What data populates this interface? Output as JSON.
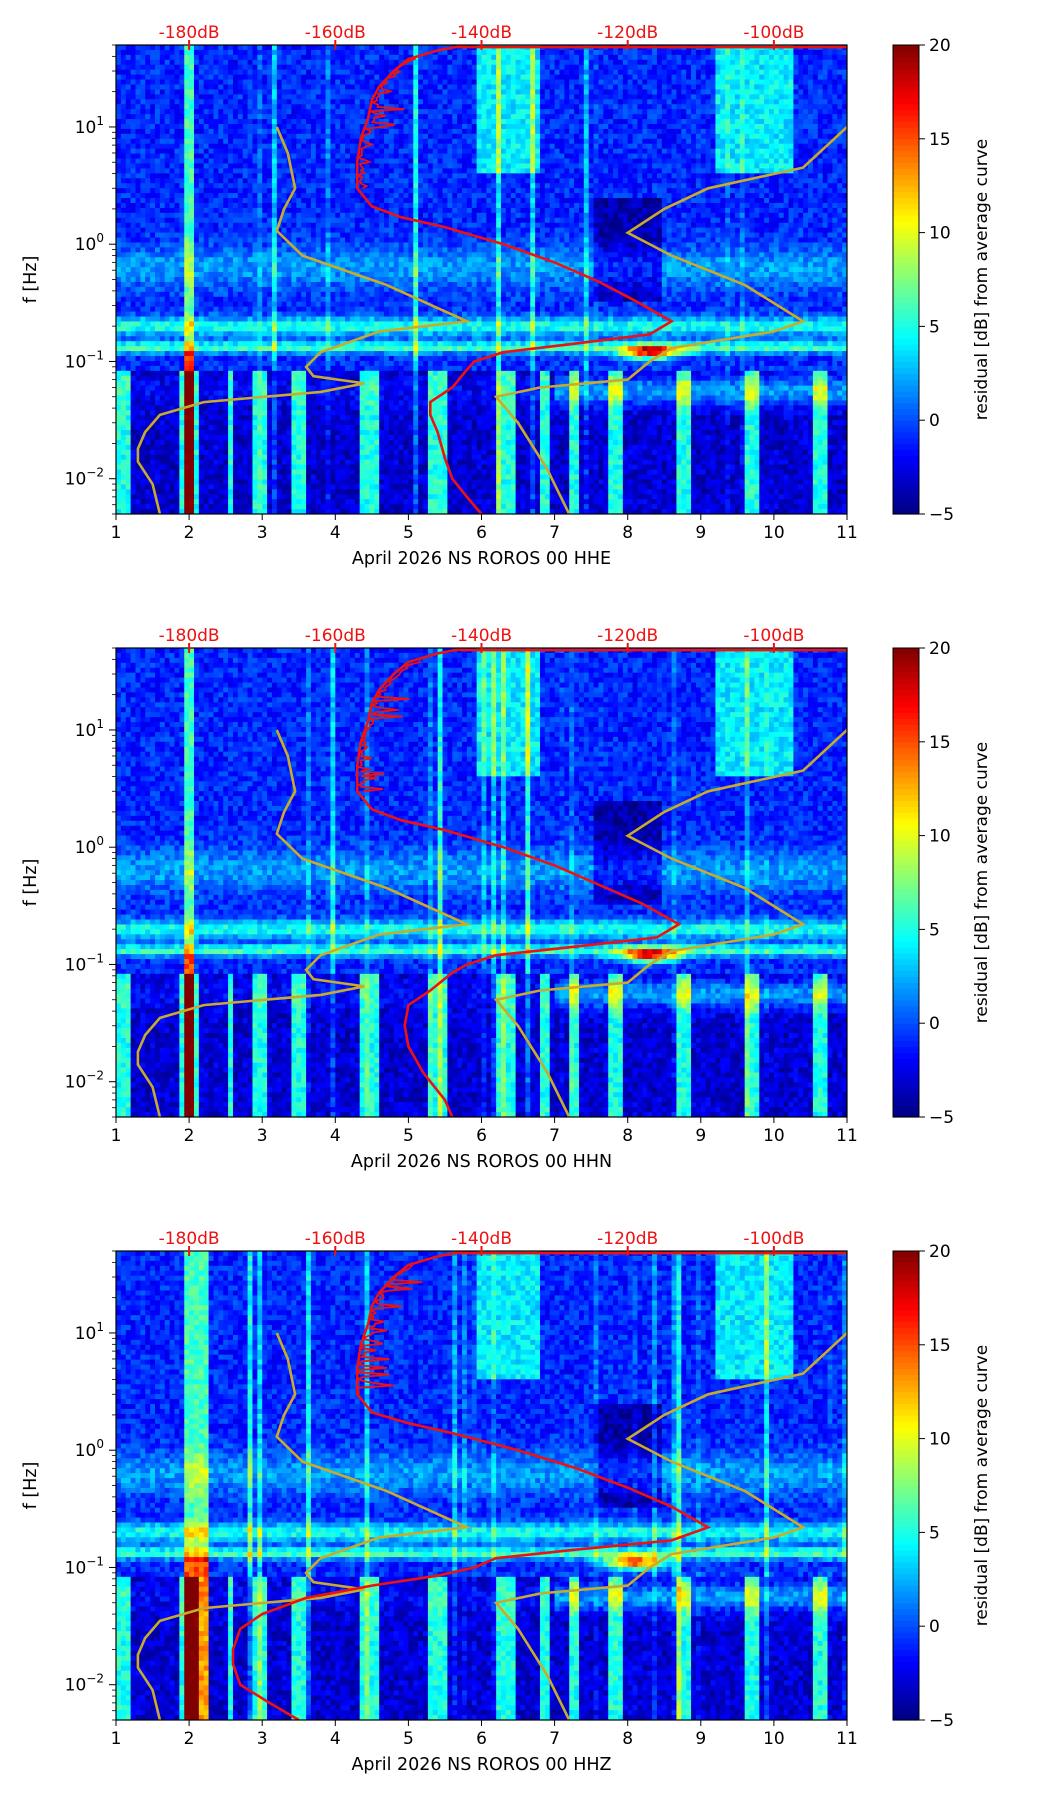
{
  "chart_data": {
    "type": "heatmap",
    "x_ticks": [
      1,
      2,
      3,
      4,
      5,
      6,
      7,
      8,
      9,
      10,
      11
    ],
    "xlim": [
      1,
      11
    ],
    "ylim": [
      0.005,
      50
    ],
    "yscale": "log",
    "ylabel": "f [Hz]",
    "y_ticks": [
      {
        "value": 10,
        "base": "10",
        "exp": "1"
      },
      {
        "value": 1,
        "base": "10",
        "exp": "0"
      },
      {
        "value": 0.1,
        "base": "10",
        "exp": "−1"
      },
      {
        "value": 0.01,
        "base": "10",
        "exp": "−2"
      }
    ],
    "db_ticks": [
      {
        "label": "-180dB",
        "x": 2.0
      },
      {
        "label": "-160dB",
        "x": 4.0
      },
      {
        "label": "-140dB",
        "x": 6.0
      },
      {
        "label": "-120dB",
        "x": 8.0
      },
      {
        "label": "-100dB",
        "x": 10.0
      }
    ],
    "colorbar": {
      "label": "residual [dB] from average curve",
      "range": [
        -5,
        20
      ],
      "ticks": [
        -5,
        0,
        5,
        10,
        15,
        20
      ],
      "tick_labels": [
        "−5",
        "0",
        "5",
        "10",
        "15",
        "20"
      ],
      "colormap": "jet"
    },
    "noise_model": [
      [
        3.2,
        10
      ],
      [
        3.35,
        6
      ],
      [
        3.45,
        3
      ],
      [
        3.3,
        2
      ],
      [
        3.2,
        1.3
      ],
      [
        3.55,
        0.8
      ],
      [
        4.7,
        0.45
      ],
      [
        5.8,
        0.22
      ],
      [
        4.6,
        0.18
      ],
      [
        3.8,
        0.12
      ],
      [
        3.6,
        0.09
      ],
      [
        3.7,
        0.075
      ],
      [
        4.4,
        0.065
      ],
      [
        3.8,
        0.055
      ],
      [
        2.2,
        0.045
      ],
      [
        1.6,
        0.035
      ],
      [
        1.4,
        0.025
      ],
      [
        1.3,
        0.018
      ],
      [
        1.3,
        0.014
      ],
      [
        1.5,
        0.009
      ],
      [
        1.6,
        0.005
      ],
      null,
      [
        11,
        10
      ],
      [
        10.4,
        4.5
      ],
      [
        9.1,
        3
      ],
      [
        8.5,
        2
      ],
      [
        8.0,
        1.25
      ],
      [
        8.6,
        0.8
      ],
      [
        9.6,
        0.45
      ],
      [
        10.4,
        0.22
      ],
      [
        10.0,
        0.18
      ],
      [
        8.6,
        0.13
      ],
      [
        8.3,
        0.1
      ],
      [
        8.0,
        0.07
      ],
      [
        6.8,
        0.06
      ],
      [
        6.2,
        0.05
      ],
      [
        6.5,
        0.03
      ],
      [
        6.9,
        0.012
      ],
      [
        7.2,
        0.005
      ]
    ],
    "panels": [
      {
        "xlabel": "April 2026 NS ROROS 00 HHE",
        "avg_curve": [
          [
            5.8,
            50
          ],
          [
            5.4,
            45
          ],
          [
            5.0,
            38
          ],
          [
            4.8,
            30
          ],
          [
            4.6,
            22
          ],
          [
            4.5,
            17
          ],
          [
            4.45,
            12
          ],
          [
            4.35,
            8
          ],
          [
            4.3,
            5
          ],
          [
            4.3,
            3
          ],
          [
            4.5,
            2.1
          ],
          [
            4.9,
            1.7
          ],
          [
            5.5,
            1.4
          ],
          [
            6.3,
            1.0
          ],
          [
            7.0,
            0.7
          ],
          [
            7.6,
            0.48
          ],
          [
            8.1,
            0.33
          ],
          [
            8.6,
            0.22
          ],
          [
            8.3,
            0.17
          ],
          [
            7.2,
            0.14
          ],
          [
            6.3,
            0.12
          ],
          [
            5.9,
            0.1
          ],
          [
            5.8,
            0.085
          ],
          [
            5.6,
            0.06
          ],
          [
            5.3,
            0.045
          ],
          [
            5.3,
            0.035
          ],
          [
            5.4,
            0.025
          ],
          [
            5.5,
            0.015
          ],
          [
            5.6,
            0.01
          ],
          [
            5.8,
            0.007
          ],
          [
            6.0,
            0.005
          ]
        ],
        "hot_columns": [
          2.0
        ],
        "bright_bands": [
          0.8,
          0.4,
          0.14,
          0.05
        ],
        "hot_spot": {
          "x": 8.3,
          "y": 0.12
        },
        "seed": 11
      },
      {
        "xlabel": "April 2026 NS ROROS 00 HHN",
        "avg_curve": [
          [
            5.8,
            50
          ],
          [
            5.4,
            45
          ],
          [
            5.0,
            38
          ],
          [
            4.8,
            30
          ],
          [
            4.6,
            22
          ],
          [
            4.5,
            17
          ],
          [
            4.45,
            12
          ],
          [
            4.35,
            8
          ],
          [
            4.3,
            5
          ],
          [
            4.3,
            3
          ],
          [
            4.5,
            2.1
          ],
          [
            4.9,
            1.7
          ],
          [
            5.5,
            1.4
          ],
          [
            6.3,
            1.0
          ],
          [
            7.0,
            0.7
          ],
          [
            7.6,
            0.48
          ],
          [
            8.2,
            0.33
          ],
          [
            8.7,
            0.22
          ],
          [
            8.4,
            0.17
          ],
          [
            7.2,
            0.14
          ],
          [
            6.2,
            0.12
          ],
          [
            5.8,
            0.1
          ],
          [
            5.6,
            0.085
          ],
          [
            5.3,
            0.06
          ],
          [
            5.0,
            0.045
          ],
          [
            4.95,
            0.03
          ],
          [
            5.0,
            0.02
          ],
          [
            5.2,
            0.012
          ],
          [
            5.5,
            0.007
          ],
          [
            5.6,
            0.005
          ]
        ],
        "hot_columns": [
          2.0
        ],
        "bright_bands": [
          0.8,
          0.4,
          0.14,
          0.05
        ],
        "hot_spot": {
          "x": 8.3,
          "y": 0.12
        },
        "seed": 23
      },
      {
        "xlabel": "April 2026 NS ROROS 00 HHZ",
        "avg_curve": [
          [
            5.8,
            50
          ],
          [
            5.4,
            45
          ],
          [
            5.0,
            38
          ],
          [
            4.8,
            30
          ],
          [
            4.6,
            22
          ],
          [
            4.5,
            17
          ],
          [
            4.45,
            12
          ],
          [
            4.35,
            8
          ],
          [
            4.3,
            5
          ],
          [
            4.3,
            3
          ],
          [
            4.5,
            2.1
          ],
          [
            5.0,
            1.7
          ],
          [
            5.6,
            1.4
          ],
          [
            6.5,
            1.0
          ],
          [
            7.3,
            0.7
          ],
          [
            8.0,
            0.48
          ],
          [
            8.6,
            0.33
          ],
          [
            9.1,
            0.22
          ],
          [
            8.6,
            0.17
          ],
          [
            7.2,
            0.14
          ],
          [
            6.2,
            0.12
          ],
          [
            5.9,
            0.1
          ],
          [
            5.4,
            0.085
          ],
          [
            4.5,
            0.07
          ],
          [
            3.6,
            0.055
          ],
          [
            3.0,
            0.04
          ],
          [
            2.7,
            0.03
          ],
          [
            2.6,
            0.02
          ],
          [
            2.6,
            0.015
          ],
          [
            2.7,
            0.01
          ],
          [
            3.1,
            0.007
          ],
          [
            3.5,
            0.005
          ]
        ],
        "hot_columns": [
          2.0,
          2.1,
          2.2
        ],
        "bright_bands": [
          0.8,
          0.4,
          0.14,
          0.05
        ],
        "hot_spot": {
          "x": 8.1,
          "y": 0.11
        },
        "seed": 37
      }
    ]
  }
}
